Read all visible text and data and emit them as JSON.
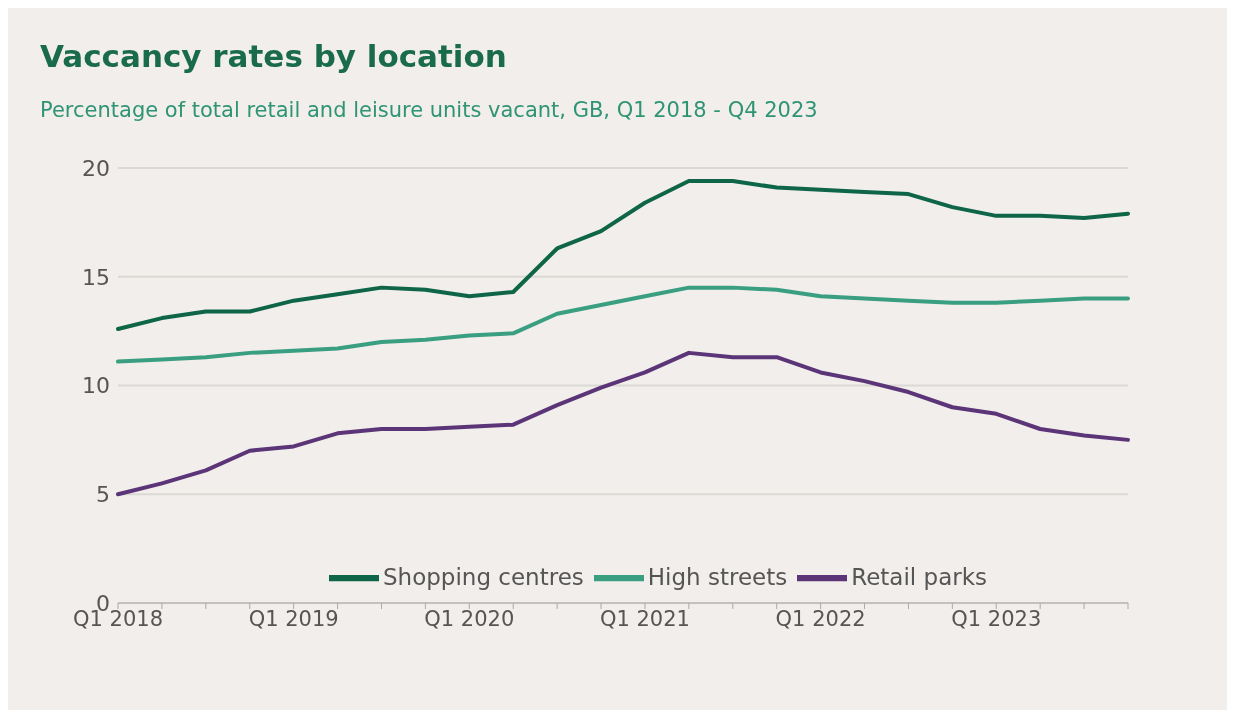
{
  "chart_data": {
    "type": "line",
    "title": "Vaccancy rates by location",
    "subtitle": "Percentage of total retail and leisure units vacant, GB, Q1 2018 - Q4 2023",
    "categories": [
      "Q1 2018",
      null,
      null,
      null,
      "Q1 2019",
      null,
      null,
      null,
      "Q1 2020",
      null,
      null,
      null,
      "Q1 2021",
      null,
      null,
      null,
      "Q1 2022",
      null,
      null,
      null,
      "Q1 2023",
      null,
      null,
      null
    ],
    "series": [
      {
        "name": "Shopping centres",
        "color": "#0e6547",
        "values": [
          12.6,
          13.1,
          13.4,
          13.4,
          13.9,
          14.2,
          14.5,
          14.4,
          14.1,
          14.3,
          16.3,
          17.1,
          18.4,
          19.4,
          19.4,
          19.1,
          19.0,
          18.9,
          18.8,
          18.2,
          17.8,
          17.8,
          17.7,
          17.9
        ]
      },
      {
        "name": "High streets",
        "color": "#3a9e80",
        "values": [
          11.1,
          11.2,
          11.3,
          11.5,
          11.6,
          11.7,
          12.0,
          12.1,
          12.3,
          12.4,
          13.3,
          13.7,
          14.1,
          14.5,
          14.5,
          14.4,
          14.1,
          14.0,
          13.9,
          13.8,
          13.8,
          13.9,
          14.0,
          14.0
        ]
      },
      {
        "name": "Retail parks",
        "color": "#5b3578",
        "values": [
          5.0,
          5.5,
          6.1,
          7.0,
          7.2,
          7.8,
          8.0,
          8.0,
          8.1,
          8.2,
          9.1,
          9.9,
          10.6,
          11.5,
          11.3,
          11.3,
          10.6,
          10.2,
          9.7,
          9.0,
          8.7,
          8.0,
          7.7,
          7.5
        ]
      }
    ],
    "ylim": [
      0,
      20
    ],
    "yticks": [
      0,
      5,
      10,
      15,
      20
    ],
    "grid": "y",
    "legend": "bottom",
    "marker": "none",
    "line_style": "solid"
  }
}
